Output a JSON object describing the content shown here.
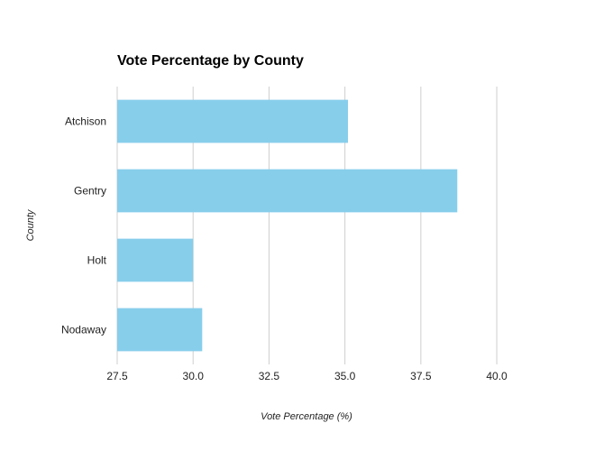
{
  "chart_data": {
    "type": "bar",
    "orientation": "horizontal",
    "title": "Vote Percentage by County",
    "xlabel": "Vote Percentage (%)",
    "ylabel": "County",
    "categories": [
      "Atchison",
      "Gentry",
      "Holt",
      "Nodaway"
    ],
    "values": [
      35.1,
      38.7,
      30.0,
      30.3
    ],
    "xlim": [
      27.5,
      41.75
    ],
    "xticks": [
      "27.5",
      "30.0",
      "32.5",
      "35.0",
      "37.5",
      "40.0"
    ],
    "grid": true,
    "bar_color": "#87CEEB",
    "legend": "none"
  }
}
